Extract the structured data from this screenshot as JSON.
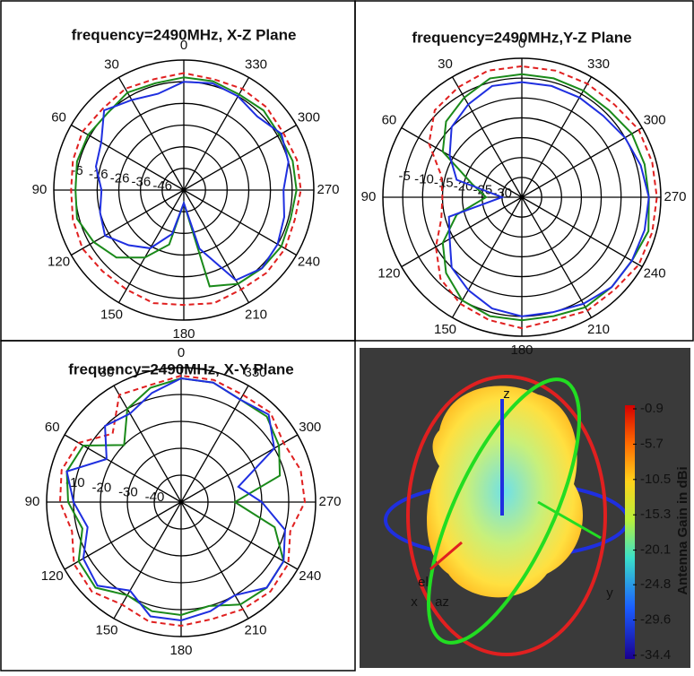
{
  "chart_data": [
    {
      "type": "polar",
      "title": "frequency=2490MHz, X-Z Plane",
      "theta": [
        0,
        15,
        30,
        45,
        60,
        75,
        90,
        105,
        120,
        135,
        150,
        165,
        180,
        195,
        210,
        225,
        240,
        255,
        270,
        285,
        300,
        315,
        330,
        345
      ],
      "thetaticks": [
        0,
        30,
        60,
        90,
        120,
        150,
        180,
        210,
        240,
        270,
        300,
        330
      ],
      "rlim": [
        -56,
        4
      ],
      "rticks": [
        -6,
        -16,
        -26,
        -36,
        -46
      ],
      "series": [
        {
          "color": "#e02020",
          "dash": true,
          "values": [
            -2,
            -3,
            -2,
            -3,
            -2,
            -3,
            -4,
            -3,
            -2,
            -3,
            -3,
            -2,
            -3,
            -2,
            -3,
            -2,
            -2,
            -3,
            -2,
            -2,
            -3,
            -2,
            -2,
            -3
          ]
        },
        {
          "color": "#1a8a1a",
          "dash": false,
          "values": [
            -4,
            -5,
            -4,
            -6,
            -5,
            -5,
            -6,
            -5,
            -8,
            -12,
            -20,
            -30,
            -50,
            -10,
            -6,
            -5,
            -4,
            -5,
            -4,
            -4,
            -5,
            -4,
            -5,
            -4
          ]
        },
        {
          "color": "#1f2fe0",
          "dash": false,
          "values": [
            -6,
            -10,
            -8,
            -4,
            -12,
            -14,
            -18,
            -16,
            -14,
            -20,
            -25,
            -35,
            -50,
            -28,
            -8,
            -5,
            -6,
            -8,
            -10,
            -6,
            -4,
            -8,
            -6,
            -5
          ]
        }
      ]
    },
    {
      "type": "polar",
      "title": "frequency=2490MHz,Y-Z Plane",
      "theta": [
        0,
        15,
        30,
        45,
        60,
        75,
        90,
        105,
        120,
        135,
        150,
        165,
        180,
        195,
        210,
        225,
        240,
        255,
        270,
        285,
        300,
        315,
        330,
        345
      ],
      "thetaticks": [
        0,
        30,
        60,
        90,
        120,
        150,
        180,
        210,
        240,
        270,
        300,
        330
      ],
      "rlim": [
        -35,
        0
      ],
      "rticks": [
        -5,
        -10,
        -15,
        -20,
        -25,
        -30
      ],
      "series": [
        {
          "color": "#e02020",
          "dash": true,
          "values": [
            -2,
            -2,
            -3,
            -4,
            -8,
            -14,
            -15,
            -14,
            -10,
            -6,
            -4,
            -3,
            -2,
            -3,
            -2,
            -2,
            -1,
            -1,
            -1,
            -1,
            -1,
            -2,
            -2,
            -2
          ]
        },
        {
          "color": "#1a8a1a",
          "dash": false,
          "values": [
            -4,
            -4,
            -6,
            -8,
            -12,
            -22,
            -26,
            -18,
            -12,
            -8,
            -5,
            -4,
            -4,
            -4,
            -3,
            -3,
            -3,
            -2,
            -3,
            -3,
            -3,
            -4,
            -4,
            -4
          ]
        },
        {
          "color": "#1f2fe0",
          "dash": false,
          "values": [
            -6,
            -6,
            -8,
            -10,
            -14,
            -18,
            -30,
            -16,
            -14,
            -10,
            -8,
            -6,
            -5,
            -5,
            -4,
            -3,
            -3,
            -3,
            -3,
            -4,
            -5,
            -6,
            -6,
            -6
          ]
        }
      ]
    },
    {
      "type": "polar",
      "title": "frequency=2490MHz, X-Y Plane",
      "theta": [
        0,
        15,
        30,
        45,
        60,
        75,
        90,
        105,
        120,
        135,
        150,
        165,
        180,
        195,
        210,
        225,
        240,
        255,
        270,
        285,
        300,
        315,
        330,
        345
      ],
      "thetaticks": [
        0,
        30,
        60,
        90,
        120,
        150,
        180,
        210,
        240,
        270,
        300,
        330
      ],
      "rlim": [
        -50,
        0
      ],
      "rticks": [
        -10,
        -20,
        -30,
        -40
      ],
      "series": [
        {
          "color": "#e02020",
          "dash": true,
          "values": [
            -3,
            -5,
            -4,
            -14,
            -6,
            -4,
            -5,
            -8,
            -4,
            -3,
            -6,
            -4,
            -4,
            -5,
            -4,
            -3,
            -4,
            -8,
            -4,
            -4,
            -6,
            -3,
            -4,
            -3
          ]
        },
        {
          "color": "#1a8a1a",
          "dash": false,
          "values": [
            -4,
            -6,
            -10,
            -20,
            -8,
            -6,
            -8,
            -12,
            -6,
            -5,
            -10,
            -8,
            -8,
            -10,
            -6,
            -5,
            -6,
            -14,
            -30,
            -12,
            -8,
            -5,
            -6,
            -4
          ]
        },
        {
          "color": "#1f2fe0",
          "dash": false,
          "values": [
            -4,
            -8,
            -12,
            -10,
            -18,
            -6,
            -10,
            -14,
            -8,
            -6,
            -12,
            -6,
            -6,
            -8,
            -10,
            -5,
            -6,
            -10,
            -20,
            -28,
            -10,
            -4,
            -6,
            -4
          ]
        }
      ]
    },
    {
      "type": "pattern3d",
      "axis_labels": [
        "z",
        "x",
        "y",
        "el",
        "az"
      ],
      "colorbar_label": "Antenna Gain in dBi",
      "clim": [
        -34.4,
        -0.9
      ],
      "cticks": [
        -0.9,
        -5.7,
        -10.5,
        -15.3,
        -20.1,
        -24.8,
        -29.6,
        -34.4
      ]
    }
  ]
}
